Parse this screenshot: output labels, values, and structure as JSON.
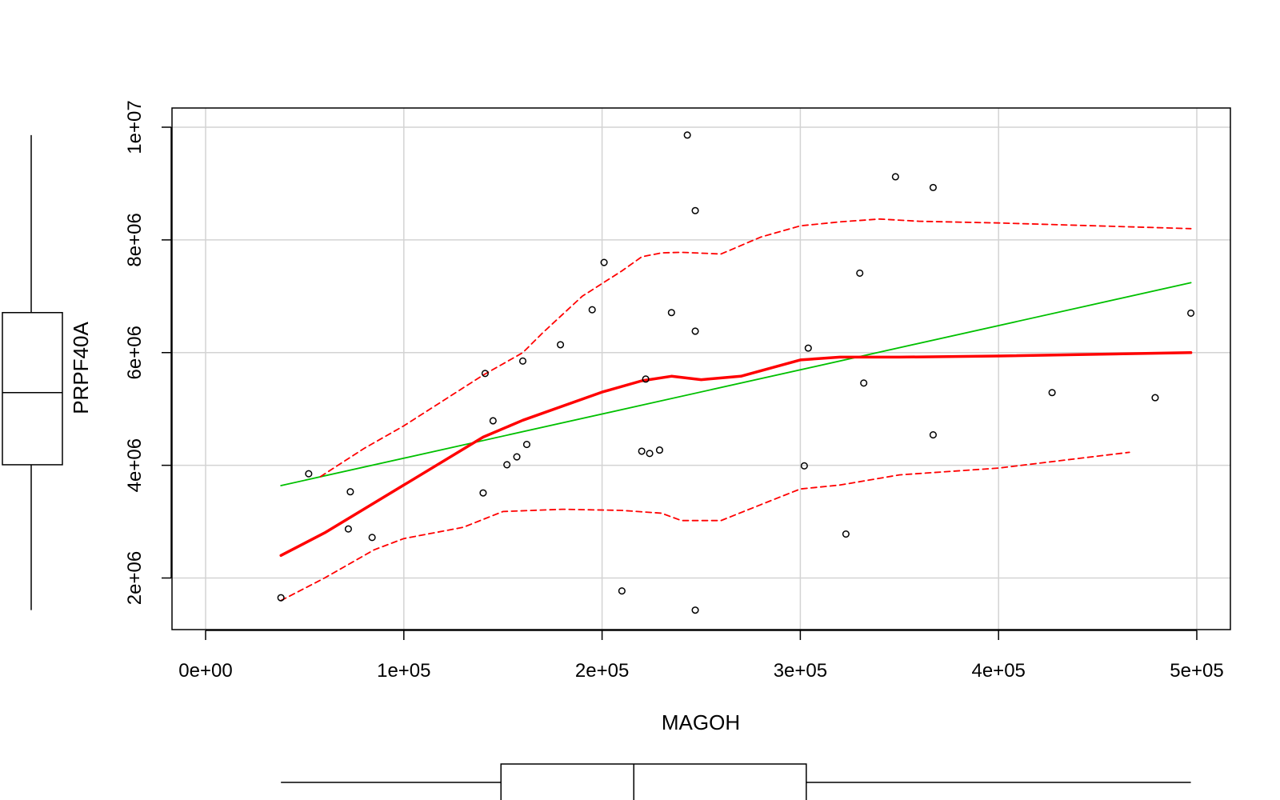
{
  "chart_data": {
    "type": "scatter",
    "title": "",
    "xlabel": "MAGOH",
    "ylabel": "PRPF40A",
    "xlim": [
      0,
      500000
    ],
    "ylim": [
      1000000,
      10000000
    ],
    "x_ticks": [
      {
        "value": 0,
        "label": "0e+00"
      },
      {
        "value": 100000,
        "label": "1e+05"
      },
      {
        "value": 200000,
        "label": "2e+05"
      },
      {
        "value": 300000,
        "label": "3e+05"
      },
      {
        "value": 400000,
        "label": "4e+05"
      },
      {
        "value": 500000,
        "label": "5e+05"
      }
    ],
    "y_ticks": [
      {
        "value": 2000000,
        "label": "2e+06"
      },
      {
        "value": 4000000,
        "label": "4e+06"
      },
      {
        "value": 6000000,
        "label": "6e+06"
      },
      {
        "value": 8000000,
        "label": "8e+06"
      },
      {
        "value": 10000000,
        "label": "1e+07"
      }
    ],
    "grid": true,
    "points": [
      [
        38000,
        1650000
      ],
      [
        52000,
        3850000
      ],
      [
        72000,
        2870000
      ],
      [
        73000,
        3530000
      ],
      [
        84000,
        2720000
      ],
      [
        140000,
        3510000
      ],
      [
        141000,
        5630000
      ],
      [
        145000,
        4790000
      ],
      [
        152000,
        4010000
      ],
      [
        157000,
        4150000
      ],
      [
        160000,
        5850000
      ],
      [
        162000,
        4370000
      ],
      [
        179000,
        6140000
      ],
      [
        195000,
        6760000
      ],
      [
        201000,
        7600000
      ],
      [
        210000,
        1770000
      ],
      [
        220000,
        4250000
      ],
      [
        222000,
        5530000
      ],
      [
        224000,
        4210000
      ],
      [
        229000,
        4270000
      ],
      [
        235000,
        6710000
      ],
      [
        243000,
        9860000
      ],
      [
        247000,
        8520000
      ],
      [
        247000,
        6380000
      ],
      [
        247000,
        1430000
      ],
      [
        302000,
        3990000
      ],
      [
        304000,
        6080000
      ],
      [
        323000,
        2780000
      ],
      [
        330000,
        7410000
      ],
      [
        332000,
        5460000
      ],
      [
        348000,
        9120000
      ],
      [
        367000,
        8930000
      ],
      [
        367000,
        4540000
      ],
      [
        427000,
        5290000
      ],
      [
        479000,
        5200000
      ],
      [
        497000,
        6700000
      ]
    ],
    "series": [
      {
        "kind": "linear-fit",
        "color": "#00c000",
        "x": [
          38000,
          497000
        ],
        "y": [
          3640000,
          7240000
        ]
      },
      {
        "kind": "smooth",
        "color": "#ff0000",
        "x": [
          38000,
          60000,
          100000,
          140000,
          160000,
          200000,
          220000,
          235000,
          250000,
          270000,
          300000,
          320000,
          350000,
          400000,
          497000
        ],
        "y": [
          2400000,
          2800000,
          3650000,
          4500000,
          4800000,
          5300000,
          5500000,
          5580000,
          5520000,
          5580000,
          5870000,
          5920000,
          5920000,
          5940000,
          6000000
        ]
      },
      {
        "kind": "smooth-upper",
        "color": "#ff0000",
        "x": [
          58000,
          80000,
          100000,
          140000,
          160000,
          170000,
          190000,
          210000,
          220000,
          230000,
          240000,
          260000,
          280000,
          300000,
          320000,
          340000,
          360000,
          400000,
          497000
        ],
        "y": [
          3800000,
          4300000,
          4700000,
          5600000,
          6000000,
          6350000,
          7000000,
          7450000,
          7700000,
          7770000,
          7780000,
          7750000,
          8050000,
          8250000,
          8320000,
          8370000,
          8330000,
          8300000,
          8200000
        ]
      },
      {
        "kind": "smooth-lower",
        "color": "#ff0000",
        "x": [
          38000,
          60000,
          85000,
          100000,
          130000,
          150000,
          180000,
          210000,
          230000,
          240000,
          260000,
          280000,
          300000,
          320000,
          350000,
          400000,
          466000
        ],
        "y": [
          1600000,
          2000000,
          2500000,
          2700000,
          2900000,
          3180000,
          3220000,
          3200000,
          3150000,
          3020000,
          3020000,
          3300000,
          3580000,
          3650000,
          3830000,
          3950000,
          4230000
        ]
      }
    ],
    "boxplot_x": {
      "whisker_low": 38000,
      "q1": 149000,
      "median": 216000,
      "q3": 303000,
      "whisker_high": 497000
    },
    "boxplot_y": {
      "whisker_low": 1430000,
      "q1": 4010000,
      "median": 5290000,
      "q3": 6710000,
      "whisker_high": 9860000
    }
  }
}
